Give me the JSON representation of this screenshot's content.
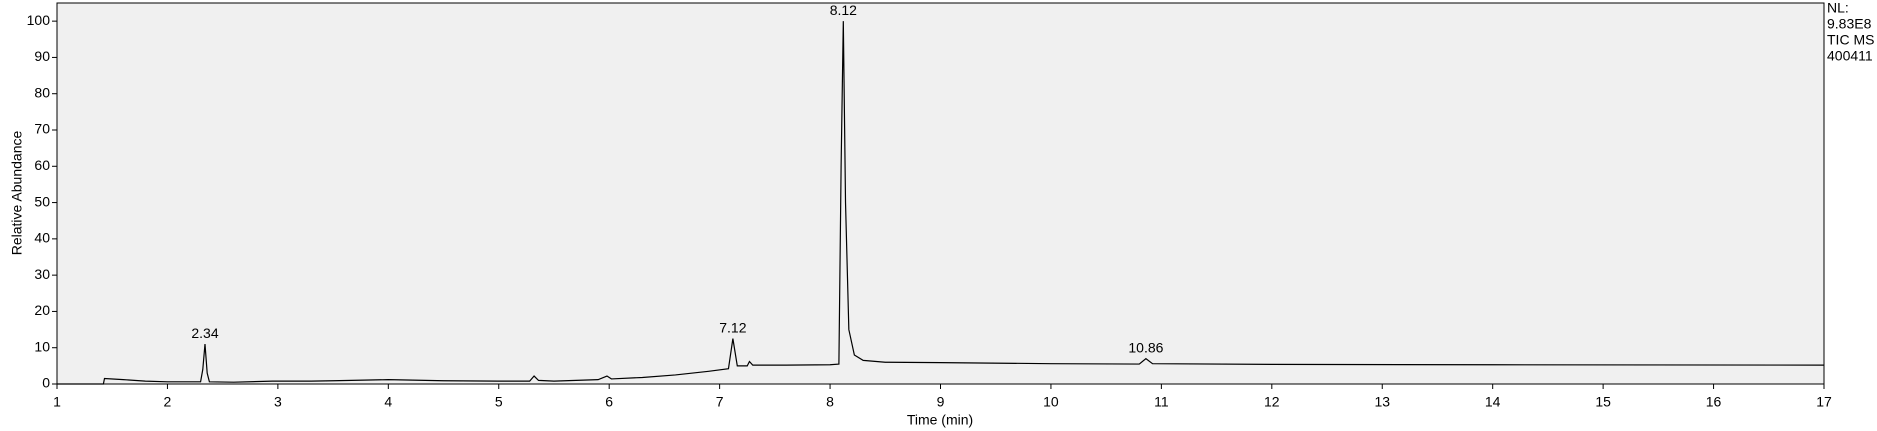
{
  "chart_data": {
    "type": "line",
    "x_label": "Time (min)",
    "y_label": "Relative Abundance",
    "info": [
      "NL:",
      "9.83E8",
      "TIC  MS",
      "400411"
    ],
    "xlim": [
      1,
      17
    ],
    "xticks": [
      1,
      2,
      3,
      4,
      5,
      6,
      7,
      8,
      9,
      10,
      11,
      12,
      13,
      14,
      15,
      16,
      17
    ],
    "ylim": [
      0,
      105
    ],
    "yticks": [
      0,
      10,
      20,
      30,
      40,
      50,
      60,
      70,
      80,
      90,
      100
    ],
    "series": [
      {
        "color": "#000000",
        "x": [
          1.0,
          1.42,
          1.43,
          1.6,
          1.8,
          2.0,
          2.3,
          2.32,
          2.34,
          2.36,
          2.38,
          2.6,
          2.95,
          3.3,
          3.5,
          4.0,
          4.5,
          5.0,
          5.28,
          5.32,
          5.36,
          5.5,
          5.9,
          5.98,
          6.02,
          6.3,
          6.6,
          6.9,
          7.08,
          7.12,
          7.16,
          7.25,
          7.27,
          7.3,
          7.6,
          8.0,
          8.08,
          8.1,
          8.12,
          8.14,
          8.17,
          8.22,
          8.3,
          8.5,
          9.0,
          10.0,
          10.8,
          10.86,
          10.92,
          12,
          14,
          17
        ],
        "values": [
          0,
          0,
          1.5,
          1.2,
          0.8,
          0.6,
          0.6,
          4,
          11,
          3,
          0.6,
          0.5,
          0.8,
          0.8,
          0.9,
          1.2,
          0.9,
          0.8,
          0.8,
          2.2,
          1,
          0.8,
          1.2,
          2.2,
          1.4,
          1.8,
          2.5,
          3.5,
          4.2,
          12.5,
          5,
          5,
          6.2,
          5.2,
          5.2,
          5.3,
          5.5,
          60,
          100,
          50,
          15,
          8,
          6.5,
          6,
          5.9,
          5.6,
          5.5,
          7,
          5.6,
          5.4,
          5.3,
          5.2
        ]
      }
    ],
    "annotations": [
      {
        "text": "2.34",
        "x": 2.34,
        "y": 11
      },
      {
        "text": "7.12",
        "x": 7.12,
        "y": 12.5
      },
      {
        "text": "8.12",
        "x": 8.12,
        "y": 100
      },
      {
        "text": "10.86",
        "x": 10.86,
        "y": 7
      }
    ]
  }
}
